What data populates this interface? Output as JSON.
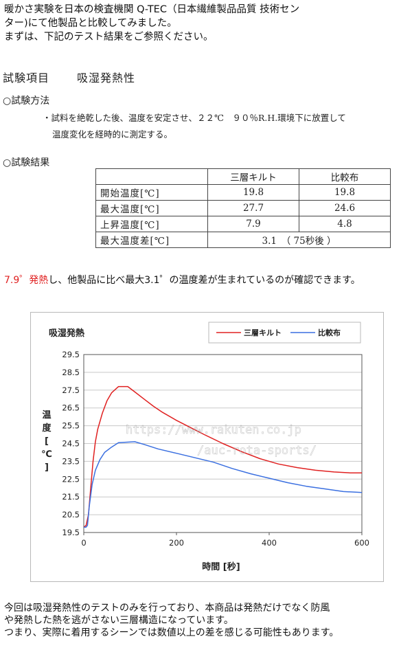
{
  "intro": {
    "line1": "暖かさ実験を日本の検査機関 Q-TEC（日本繊維製品品質 技術セン",
    "line2": "ター)にて他製品と比較してみました。",
    "line3": "まずは、下記のテスト結果をご参照ください。"
  },
  "scan": {
    "title_a": "試験項目",
    "title_b": "吸湿発熱性",
    "method_heading": "○試験方法",
    "method_line1": "・試料を絶乾した後、温度を安定させ、２２℃　９０％R.H.環境下に放置して",
    "method_line2": "温度変化を経時的に測定する。",
    "result_heading": "○試験結果",
    "table": {
      "headers": [
        "",
        "三層キルト",
        "比較布"
      ],
      "rows": [
        [
          "開始温度[℃]",
          "19.8",
          "19.8"
        ],
        [
          "最大温度[℃]",
          "27.7",
          "24.6"
        ],
        [
          "上昇温度[℃]",
          "7.9",
          "4.8"
        ]
      ],
      "diff_label": "最大温度差[℃]",
      "diff_value": "3.1　（ 75秒後 ）"
    }
  },
  "summary": {
    "red_part": "7.9゜発熱",
    "rest_part": "し、他製品に比べ最大3.1゜の温度差が生まれているのが確認できます。"
  },
  "watermark": {
    "line1": "https://www.rakuten.co.jp",
    "line2": "/auc-rota-sports/"
  },
  "outro": {
    "line1": "今回は吸湿発熱性のテストのみを行っており、本商品は発熱だけでなく防風",
    "line2": "や発熱した熱を逃がさない三層構造になっています。",
    "line3": "つまり、実際に着用するシーンでは数値以上の差を感じる可能性もあります。"
  },
  "colors": {
    "series1": "#e02020",
    "series2": "#3a6fe0",
    "grid": "#c8c8c8",
    "highlight": "#e02020"
  },
  "chart_data": {
    "type": "line",
    "title": "吸湿発熱",
    "xlabel": "時間 [秒]",
    "ylabel_chars": [
      "温",
      "度",
      "[",
      "℃",
      "]"
    ],
    "xlim": [
      0,
      600
    ],
    "ylim": [
      19.5,
      29.5
    ],
    "xticks": [
      0,
      200,
      400,
      600
    ],
    "yticks": [
      19.5,
      20.5,
      21.5,
      22.5,
      23.5,
      24.5,
      25.5,
      26.5,
      27.5,
      28.5,
      29.5
    ],
    "grid": true,
    "legend_position": "top-right",
    "series": [
      {
        "name": "三層キルト",
        "color": "#e02020",
        "points": [
          [
            0,
            19.8
          ],
          [
            5,
            19.9
          ],
          [
            10,
            20.5
          ],
          [
            15,
            22.0
          ],
          [
            20,
            23.5
          ],
          [
            25,
            24.6
          ],
          [
            30,
            25.3
          ],
          [
            40,
            26.2
          ],
          [
            50,
            26.9
          ],
          [
            60,
            27.35
          ],
          [
            75,
            27.7
          ],
          [
            95,
            27.7
          ],
          [
            110,
            27.4
          ],
          [
            130,
            27.0
          ],
          [
            150,
            26.6
          ],
          [
            170,
            26.25
          ],
          [
            200,
            25.8
          ],
          [
            230,
            25.4
          ],
          [
            260,
            25.0
          ],
          [
            300,
            24.5
          ],
          [
            340,
            24.05
          ],
          [
            380,
            23.65
          ],
          [
            420,
            23.35
          ],
          [
            460,
            23.15
          ],
          [
            500,
            23.0
          ],
          [
            540,
            22.9
          ],
          [
            575,
            22.85
          ],
          [
            600,
            22.85
          ]
        ]
      },
      {
        "name": "比較布",
        "color": "#3a6fe0",
        "points": [
          [
            0,
            19.8
          ],
          [
            5,
            19.8
          ],
          [
            8,
            19.9
          ],
          [
            12,
            21.0
          ],
          [
            18,
            22.2
          ],
          [
            25,
            23.0
          ],
          [
            35,
            23.6
          ],
          [
            45,
            24.0
          ],
          [
            60,
            24.3
          ],
          [
            75,
            24.55
          ],
          [
            110,
            24.6
          ],
          [
            130,
            24.45
          ],
          [
            160,
            24.2
          ],
          [
            200,
            23.95
          ],
          [
            240,
            23.7
          ],
          [
            280,
            23.45
          ],
          [
            320,
            23.1
          ],
          [
            360,
            22.8
          ],
          [
            400,
            22.55
          ],
          [
            440,
            22.3
          ],
          [
            480,
            22.1
          ],
          [
            520,
            21.95
          ],
          [
            560,
            21.8
          ],
          [
            600,
            21.75
          ]
        ]
      }
    ]
  }
}
